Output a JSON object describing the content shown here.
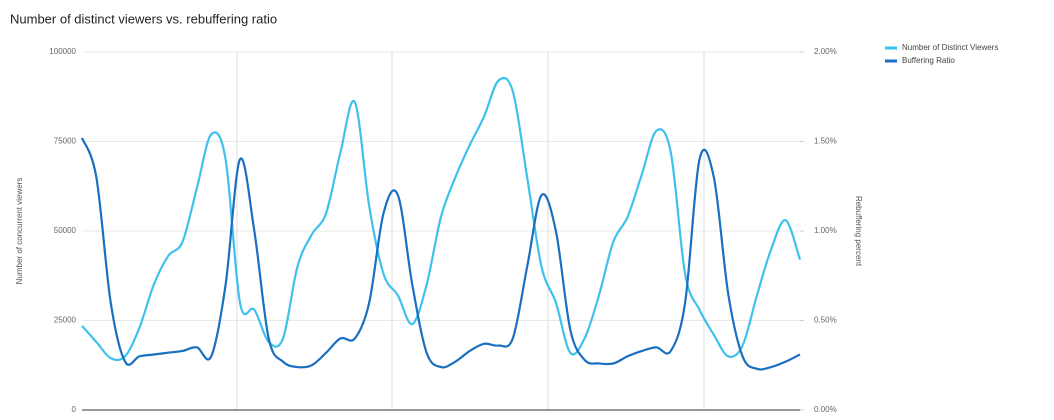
{
  "chart_data": {
    "type": "line",
    "title": "Number of distinct viewers vs. rebuffering ratio",
    "y_label": "Number of concurrent viewers",
    "y2_label": "Rebuffering percent",
    "x": [
      0,
      2,
      4,
      6,
      8,
      10,
      12,
      14,
      16,
      18,
      20,
      22,
      24,
      26,
      28,
      30,
      32,
      34,
      36,
      38,
      40,
      42,
      44,
      46,
      48,
      50,
      52,
      54,
      56,
      58,
      60,
      62,
      64,
      66,
      68,
      70,
      72,
      74,
      76,
      78,
      80,
      82,
      84,
      86,
      88,
      90,
      92,
      94,
      96,
      98,
      100
    ],
    "xlim": [
      0,
      100
    ],
    "ylim": [
      0,
      100000
    ],
    "yticks": [
      0,
      25000,
      50000,
      75000,
      100000
    ],
    "y2lim": [
      0,
      2
    ],
    "y2ticks": [
      {
        "value": 0,
        "label": "0.00%"
      },
      {
        "value": 0.5,
        "label": "0.50%"
      },
      {
        "value": 1,
        "label": "1.00%"
      },
      {
        "value": 1.5,
        "label": "1.50%"
      },
      {
        "value": 2,
        "label": "2.00%"
      }
    ],
    "grid": true,
    "legend": "top-right",
    "series": [
      {
        "name": "Number of Distinct Viewers",
        "color": "#3ec1ec",
        "values": [
          23500,
          19000,
          14500,
          15000,
          23000,
          35000,
          43000,
          47000,
          62000,
          77000,
          70000,
          30000,
          28000,
          19000,
          20000,
          40000,
          49000,
          55000,
          72000,
          86000,
          57000,
          38000,
          32000,
          24000,
          35000,
          54000,
          65000,
          74000,
          82000,
          92000,
          89000,
          65000,
          40000,
          30000,
          16000,
          20000,
          32000,
          47000,
          54000,
          66000,
          78000,
          72000,
          38000,
          28000,
          21000,
          15000,
          18000,
          32000,
          45000,
          53000,
          42000
        ]
      },
      {
        "name": "Buffering Ratio",
        "color": "#1a6fc0",
        "axis": "y2",
        "values": [
          1.52,
          1.3,
          0.6,
          0.27,
          0.3,
          0.31,
          0.32,
          0.33,
          0.35,
          0.3,
          0.7,
          1.4,
          1.0,
          0.4,
          0.27,
          0.24,
          0.25,
          0.32,
          0.4,
          0.4,
          0.6,
          1.1,
          1.2,
          0.7,
          0.32,
          0.24,
          0.27,
          0.33,
          0.37,
          0.36,
          0.4,
          0.8,
          1.2,
          1.0,
          0.45,
          0.28,
          0.26,
          0.26,
          0.3,
          0.33,
          0.35,
          0.33,
          0.6,
          1.4,
          1.3,
          0.65,
          0.3,
          0.23,
          0.24,
          0.27,
          0.31
        ]
      }
    ]
  }
}
